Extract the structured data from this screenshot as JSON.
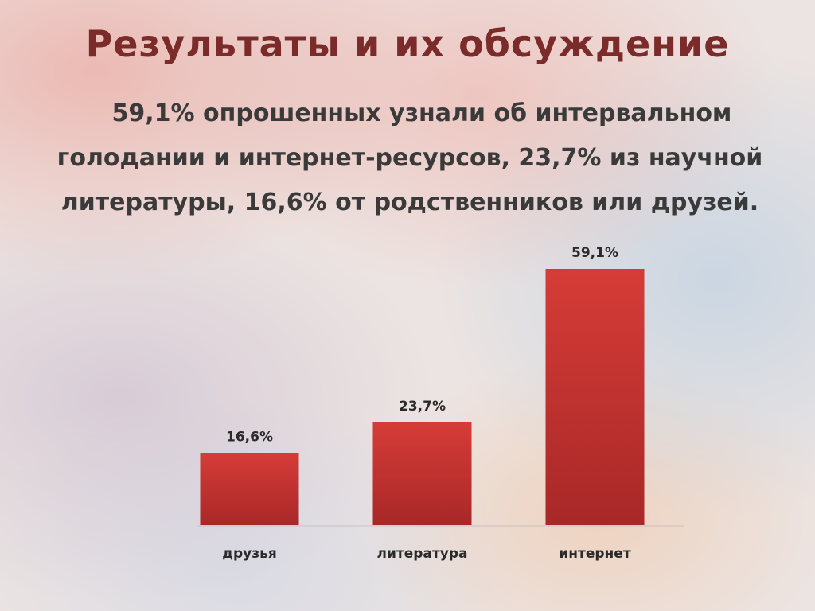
{
  "chart_data": {
    "type": "bar",
    "title": "Результаты и их обсуждение",
    "subtitle": "59,1% опрошенных узнали об интервальном голодании и интернет-ресурсов, 23,7% из научной литературы, 16,6% от родственников или друзей.",
    "categories": [
      "друзья",
      "литература",
      "интернет"
    ],
    "values": [
      16.6,
      23.7,
      59.1
    ],
    "value_labels": [
      "16,6%",
      "23,7%",
      "59,1%"
    ],
    "color": "#c9302c"
  }
}
